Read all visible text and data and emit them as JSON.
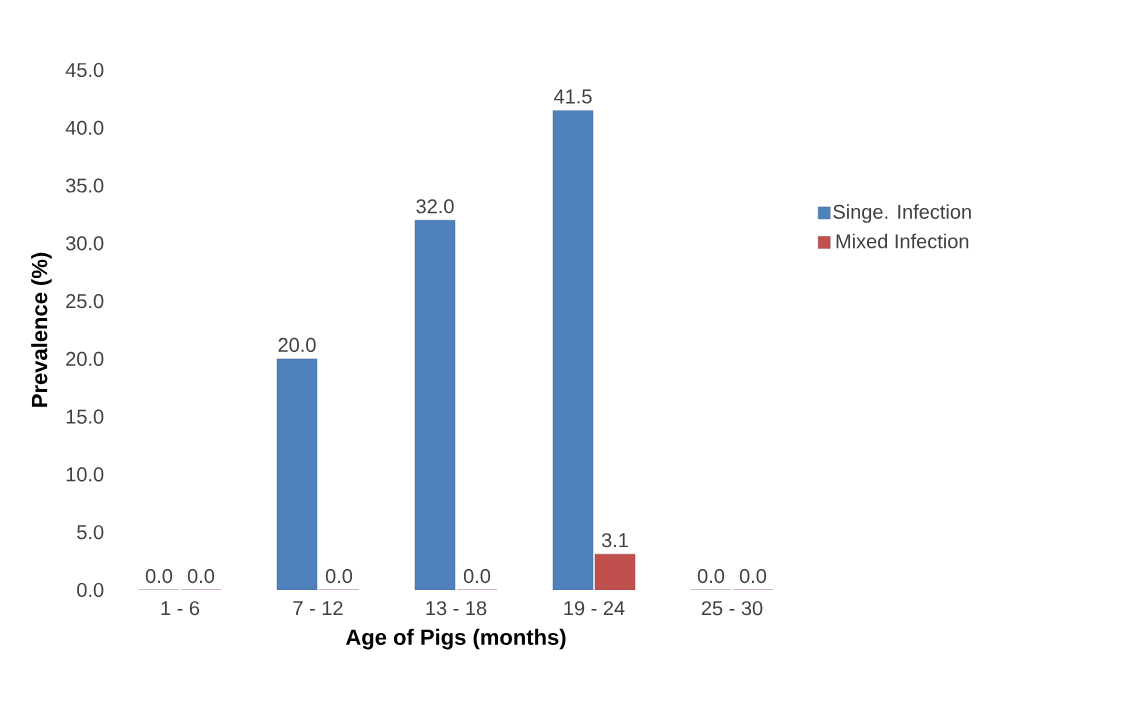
{
  "chart_data": {
    "type": "bar",
    "xlabel": "Age of Pigs (months)",
    "ylabel": "Prevalence (%)",
    "categories": [
      "1 - 6",
      "7 - 12",
      "13 - 18",
      "19 - 24",
      "25 - 30"
    ],
    "series": [
      {
        "name": "Singe. Infection",
        "color": "#4f81bd",
        "values": [
          0,
          20,
          32,
          41.5,
          0
        ],
        "value_labels": [
          "0.0",
          "20.0",
          "32.0",
          "41.5",
          "0.0"
        ]
      },
      {
        "name": "Mixed Infection",
        "color": "#c0504d",
        "values": [
          0,
          0,
          0,
          3.1,
          0
        ],
        "value_labels": [
          "0.0",
          "0.0",
          "0.0",
          "3.1",
          "0.0"
        ]
      }
    ],
    "ylim": [
      0,
      45
    ],
    "yticks": [
      {
        "value": 0,
        "label": "0.0"
      },
      {
        "value": 5,
        "label": "5.0"
      },
      {
        "value": 10,
        "label": "10.0"
      },
      {
        "value": 15,
        "label": "15.0"
      },
      {
        "value": 20,
        "label": "20.0"
      },
      {
        "value": 25,
        "label": "25.0"
      },
      {
        "value": 30,
        "label": "30.0"
      },
      {
        "value": 35,
        "label": "35.0"
      },
      {
        "value": 40,
        "label": "40.0"
      },
      {
        "value": 45,
        "label": "45.0"
      }
    ],
    "grid": false,
    "legend": "right"
  }
}
